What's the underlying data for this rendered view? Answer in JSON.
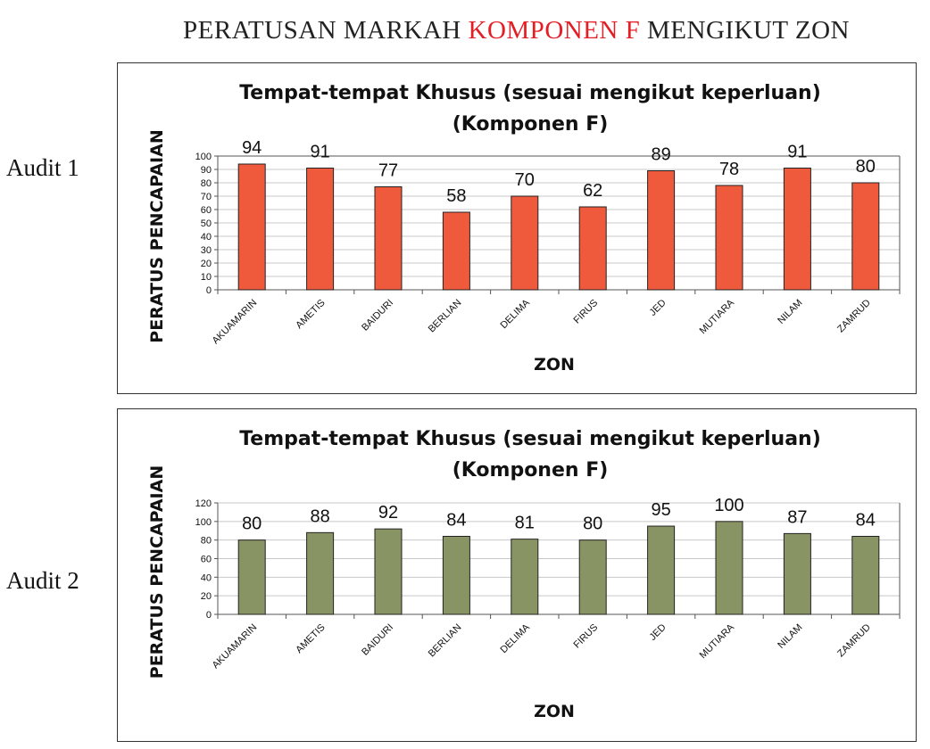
{
  "title": {
    "part1": "PERATUSAN MARKAH ",
    "accent": "KOMPONEN F",
    "part2": " MENGIKUT ZON"
  },
  "audit_labels": [
    "Audit 1",
    "Audit 2"
  ],
  "chart_data": [
    {
      "type": "bar",
      "title": "Tempat-tempat Khusus (sesuai mengikut keperluan)",
      "subtitle": "(Komponen F)",
      "xlabel": "ZON",
      "ylabel": "PERATUS PENCAPAIAN",
      "categories": [
        "AKUAMARIN",
        "AMETIS",
        "BAIDURI",
        "BERLIAN",
        "DELIMA",
        "FIRUS",
        "JED",
        "MUTIARA",
        "NILAM",
        "ZAMRUD"
      ],
      "values": [
        94,
        91,
        77,
        58,
        70,
        62,
        89,
        78,
        91,
        80
      ],
      "ylim": [
        0,
        100
      ],
      "yticks": [
        0,
        10,
        20,
        30,
        40,
        50,
        60,
        70,
        80,
        90,
        100
      ],
      "color": "#f05a3c",
      "grid": true
    },
    {
      "type": "bar",
      "title": "Tempat-tempat Khusus (sesuai mengikut keperluan)",
      "subtitle": "(Komponen F)",
      "xlabel": "ZON",
      "ylabel": "PERATUS PENCAPAIAN",
      "categories": [
        "AKUAMARIN",
        "AMETIS",
        "BAIDURI",
        "BERLIAN",
        "DELIMA",
        "FIRUS",
        "JED",
        "MUTIARA",
        "NILAM",
        "ZAMRUD"
      ],
      "values": [
        80,
        88,
        92,
        84,
        81,
        80,
        95,
        100,
        87,
        84
      ],
      "ylim": [
        0,
        120
      ],
      "yticks": [
        0,
        20,
        40,
        60,
        80,
        100,
        120
      ],
      "color": "#889463",
      "grid": true
    }
  ]
}
